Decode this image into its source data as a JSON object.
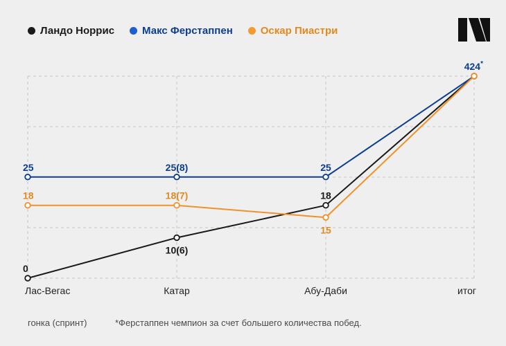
{
  "legend": [
    {
      "label": "Ландо Норрис",
      "color": "#1a1a1a"
    },
    {
      "label": "Макс Ферстаппен",
      "color": "#0b3d91"
    },
    {
      "label": "Оскар Пиастри",
      "color": "#f0912a"
    }
  ],
  "logo": {
    "icon": "brand-logo-icon",
    "color": "#111111"
  },
  "footnotes": {
    "left": "гонка (спринт)",
    "right": "*Ферстаппен чемпион за счет большего количества побед."
  },
  "chart_data": {
    "type": "line",
    "categories": [
      "Лас-Вегас",
      "Катар",
      "Абу-Даби",
      "итог"
    ],
    "grid": true,
    "series": [
      {
        "name": "Ландо Норрис",
        "color": "#1a1a1a",
        "labelColor": "#1a1a1a",
        "values": [
          0,
          10,
          18,
          424
        ],
        "labels": [
          "0",
          "10(6)",
          "18",
          ""
        ],
        "labelPos": [
          "above",
          "below",
          "above",
          "above"
        ]
      },
      {
        "name": "Макс Ферстаппен",
        "color": "#0b3d91",
        "labelColor": "#0b3d91",
        "values": [
          25,
          25,
          25,
          424
        ],
        "labels": [
          "25",
          "25(8)",
          "25",
          "424*"
        ],
        "labelPos": [
          "above",
          "above",
          "above",
          "above"
        ]
      },
      {
        "name": "Оскар Пиастри",
        "color": "#f0912a",
        "labelColor": "#e08a1f",
        "values": [
          18,
          18,
          15,
          424
        ],
        "labels": [
          "18",
          "18(7)",
          "15",
          ""
        ],
        "labelPos": [
          "above",
          "above",
          "below",
          "above"
        ]
      }
    ]
  }
}
